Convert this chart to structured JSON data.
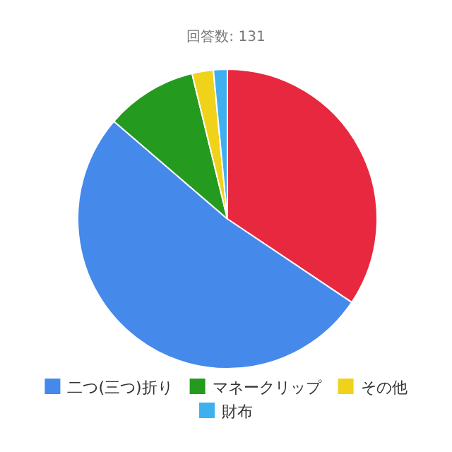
{
  "chart_data": {
    "type": "pie",
    "title": "回答数: 131",
    "categories": [
      null,
      "二つ(三つ)折り",
      "マネークリップ",
      "その他",
      "財布"
    ],
    "values": [
      34.4,
      51.9,
      9.9,
      2.3,
      1.5
    ],
    "colors": [
      "#e8283f",
      "#4589ea",
      "#249a1e",
      "#f0d21a",
      "#3fb0ef"
    ],
    "legend": "bottom"
  }
}
